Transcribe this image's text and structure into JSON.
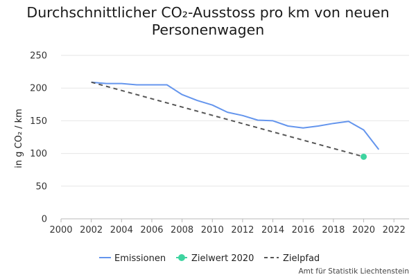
{
  "chart_data": {
    "type": "line",
    "title": "Durchschnittlicher CO₂-Ausstoss pro km von neuen Personenwagen",
    "ylabel": "in g CO₂ / km",
    "xlabel": "",
    "xlim": [
      2000,
      2023
    ],
    "ylim": [
      0,
      250
    ],
    "x_ticks": [
      2000,
      2002,
      2004,
      2006,
      2008,
      2010,
      2012,
      2014,
      2016,
      2018,
      2020,
      2022
    ],
    "y_ticks": [
      0,
      50,
      100,
      150,
      200,
      250
    ],
    "grid": "horizontal",
    "legend_position": "bottom",
    "series": [
      {
        "name": "Emissionen",
        "style": "line",
        "color": "#6495ed",
        "x": [
          2002,
          2003,
          2004,
          2005,
          2006,
          2007,
          2008,
          2009,
          2010,
          2011,
          2012,
          2013,
          2014,
          2015,
          2016,
          2017,
          2018,
          2019,
          2020,
          2021
        ],
        "y": [
          209,
          207,
          207,
          205,
          205,
          205,
          190,
          181,
          174,
          163,
          158,
          151,
          150,
          142,
          139,
          142,
          146,
          149,
          136,
          106
        ]
      },
      {
        "name": "Zielwert 2020",
        "style": "point",
        "color": "#3ed4a0",
        "x": [
          2020
        ],
        "y": [
          95
        ]
      },
      {
        "name": "Zielpfad",
        "style": "dashed",
        "color": "#555555",
        "x": [
          2002,
          2020
        ],
        "y": [
          209,
          95
        ]
      }
    ],
    "source": "Amt für Statistik Liechtenstein"
  }
}
